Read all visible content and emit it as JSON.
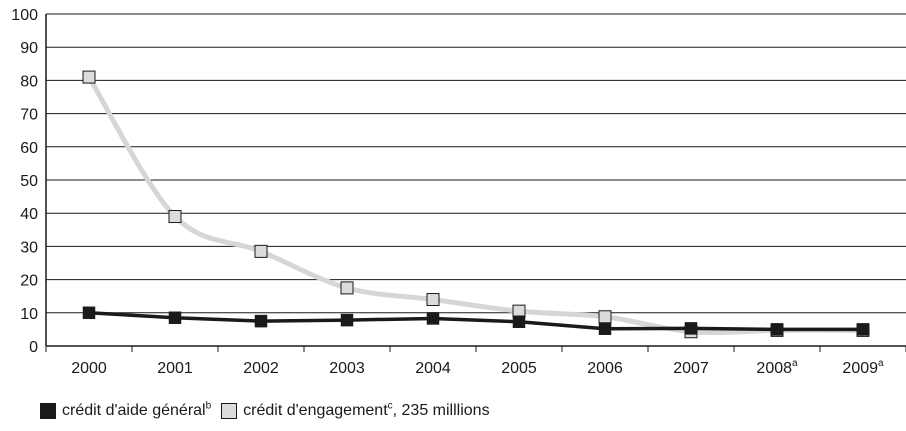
{
  "chart_data": {
    "type": "line",
    "categories": [
      "2000",
      "2001",
      "2002",
      "2003",
      "2004",
      "2005",
      "2006",
      "2007",
      "2008",
      "2009"
    ],
    "category_superscripts": [
      "",
      "",
      "",
      "",
      "",
      "",
      "",
      "",
      "a",
      "a"
    ],
    "ylim": [
      0,
      100
    ],
    "yticks": [
      "0",
      "10",
      "20",
      "30",
      "40",
      "50",
      "60",
      "70",
      "80",
      "90",
      "100"
    ],
    "grid": true,
    "legend_placement": "bottom-left",
    "series": [
      {
        "name": "crédit d'aide général",
        "name_superscript": "b",
        "name_suffix": "",
        "color": "#1a1a1a",
        "line_color": "#1a1a1a",
        "values": [
          10,
          8.5,
          7.5,
          7.8,
          8.3,
          7.3,
          5.2,
          5.3,
          5,
          5
        ]
      },
      {
        "name": "crédit d'engagement",
        "name_superscript": "c",
        "name_suffix": ", 235 milllions",
        "color": "#dcdcdc",
        "line_color": "#d6d6d6",
        "values": [
          81,
          39,
          28.5,
          17.5,
          14,
          10.5,
          8.8,
          4.3,
          4.7,
          4.7
        ]
      }
    ]
  }
}
